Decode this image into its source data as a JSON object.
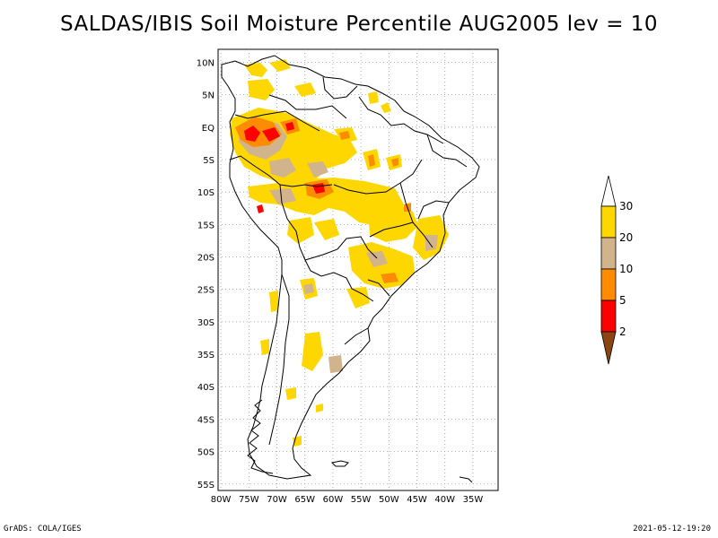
{
  "title": "SALDAS/IBIS Soil Moisture Percentile AUG2005 lev = 10",
  "footer_left": "GrADS: COLA/IGES",
  "footer_right": "2021-05-12-19:20",
  "map": {
    "lat_labels": [
      "10N",
      "5N",
      "EQ",
      "5S",
      "10S",
      "15S",
      "20S",
      "25S",
      "30S",
      "35S",
      "40S",
      "45S",
      "50S",
      "55S"
    ],
    "lat_values": [
      10,
      5,
      0,
      -5,
      -10,
      -15,
      -20,
      -25,
      -30,
      -35,
      -40,
      -45,
      -50,
      -55
    ],
    "lon_labels": [
      "80W",
      "75W",
      "70W",
      "65W",
      "60W",
      "55W",
      "50W",
      "45W",
      "40W",
      "35W"
    ],
    "lon_values": [
      -80,
      -75,
      -70,
      -65,
      -60,
      -55,
      -50,
      -45,
      -40,
      -35
    ],
    "extent": {
      "lon": [
        -80.5,
        -30.5
      ],
      "lat": [
        -56,
        12
      ]
    },
    "grid": true
  },
  "colorbar": {
    "labels": [
      "30",
      "20",
      "10",
      "5",
      "2"
    ],
    "colors": {
      "above30": "#ffffff",
      "20_30": "#ffd700",
      "10_20": "#d2b48c",
      "5_10": "#ff8c00",
      "2_5": "#ff0000",
      "below2": "#8b4513"
    }
  }
}
